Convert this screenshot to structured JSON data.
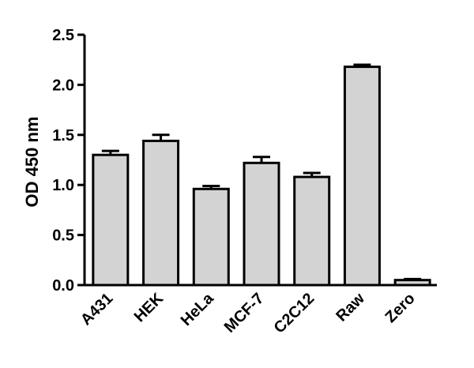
{
  "chart_data": {
    "type": "bar",
    "title": "",
    "xlabel": "",
    "ylabel": "OD 450 nm",
    "ylim": [
      0,
      2.5
    ],
    "yticks": [
      "0.0",
      "0.5",
      "1.0",
      "1.5",
      "2.0",
      "2.5"
    ],
    "categories": [
      "A431",
      "HEK",
      "HeLa",
      "MCF-7",
      "C2C12",
      "Raw",
      "Zero"
    ],
    "values": [
      1.3,
      1.44,
      0.96,
      1.22,
      1.08,
      2.18,
      0.05
    ],
    "errors": [
      0.04,
      0.06,
      0.03,
      0.06,
      0.04,
      0.02,
      0.01
    ],
    "grid": false,
    "legend": "none",
    "colors": {
      "bar_fill": "#d3d3d3",
      "bar_stroke": "#000000"
    }
  }
}
